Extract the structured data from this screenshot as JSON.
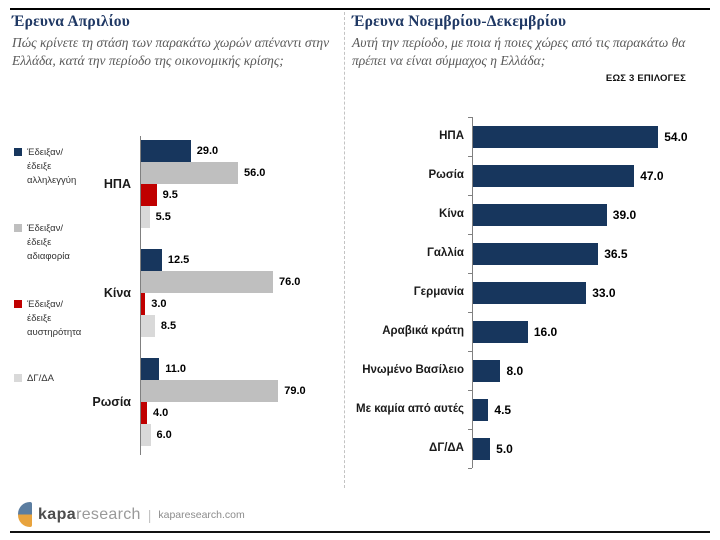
{
  "left_panel": {
    "title": "Έρευνα Απριλίου",
    "subtitle": "Πώς κρίνετε τη στάση των παρακάτω χωρών απέναντι στην Ελλάδα, κατά την περίοδο της οικονομικής κρίσης;"
  },
  "right_panel": {
    "title": "Έρευνα Νοεμβρίου-Δεκεμβρίου",
    "subtitle": "Αυτή την περίοδο, με ποια ή ποιες χώρες από τις παρακάτω θα πρέπει να είναι σύμμαχος η Ελλάδα;",
    "note": "ΕΩΣ 3 ΕΠΙΛΟΓΕΣ"
  },
  "footer": {
    "logo_bold": "kapa",
    "logo_light": "research",
    "separator": "|",
    "website": "kaparesearch.com",
    "icon_top_color": "#5b7da0",
    "icon_bottom_color": "#e8a33d"
  },
  "colors": {
    "navy": "#17365d",
    "gray": "#bfbfbf",
    "red": "#c00000",
    "light_gray": "#d9d9d9",
    "title_navy": "#1f3864",
    "axis": "#808080"
  },
  "chart_data": [
    {
      "type": "bar",
      "orientation": "horizontal",
      "title": "Έρευνα Απριλίου",
      "question": "Πώς κρίνετε τη στάση των παρακάτω χωρών απέναντι στην Ελλάδα, κατά την περίοδο της οικονομικής κρίσης;",
      "categories": [
        "ΗΠΑ",
        "Κίνα",
        "Ρωσία"
      ],
      "series": [
        {
          "name": "Έδειξαν/ έδειξε αλληλεγγύη",
          "color": "#17365d",
          "values": [
            29.0,
            12.5,
            11.0
          ]
        },
        {
          "name": "Έδειξαν/ έδειξε αδιαφορία",
          "color": "#bfbfbf",
          "values": [
            56.0,
            76.0,
            79.0
          ]
        },
        {
          "name": "Έδειξαν/ έδειξε αυστηρότητα",
          "color": "#c00000",
          "values": [
            9.5,
            3.0,
            4.0
          ]
        },
        {
          "name": "ΔΓ/ΔΑ",
          "color": "#d9d9d9",
          "values": [
            5.5,
            8.5,
            6.0
          ]
        }
      ],
      "value_labels": true,
      "xlim": [
        0,
        100
      ],
      "legend_position": "left",
      "grid": false
    },
    {
      "type": "bar",
      "orientation": "horizontal",
      "title": "Έρευνα Νοεμβρίου-Δεκεμβρίου",
      "question": "Αυτή την περίοδο, με ποια ή ποιες χώρες από τις παρακάτω θα πρέπει να είναι σύμμαχος η Ελλάδα;",
      "note": "ΕΩΣ 3 ΕΠΙΛΟΓΕΣ",
      "categories": [
        "ΗΠΑ",
        "Ρωσία",
        "Κίνα",
        "Γαλλία",
        "Γερμανία",
        "Αραβικά κράτη",
        "Ηνωμένο Βασίλειο",
        "Με καμία από αυτές",
        "ΔΓ/ΔΑ"
      ],
      "values": [
        54.0,
        47.0,
        39.0,
        36.5,
        33.0,
        16.0,
        8.0,
        4.5,
        5.0
      ],
      "bar_color": "#17365d",
      "value_labels": true,
      "xlim": [
        0,
        60
      ],
      "grid": false
    }
  ]
}
